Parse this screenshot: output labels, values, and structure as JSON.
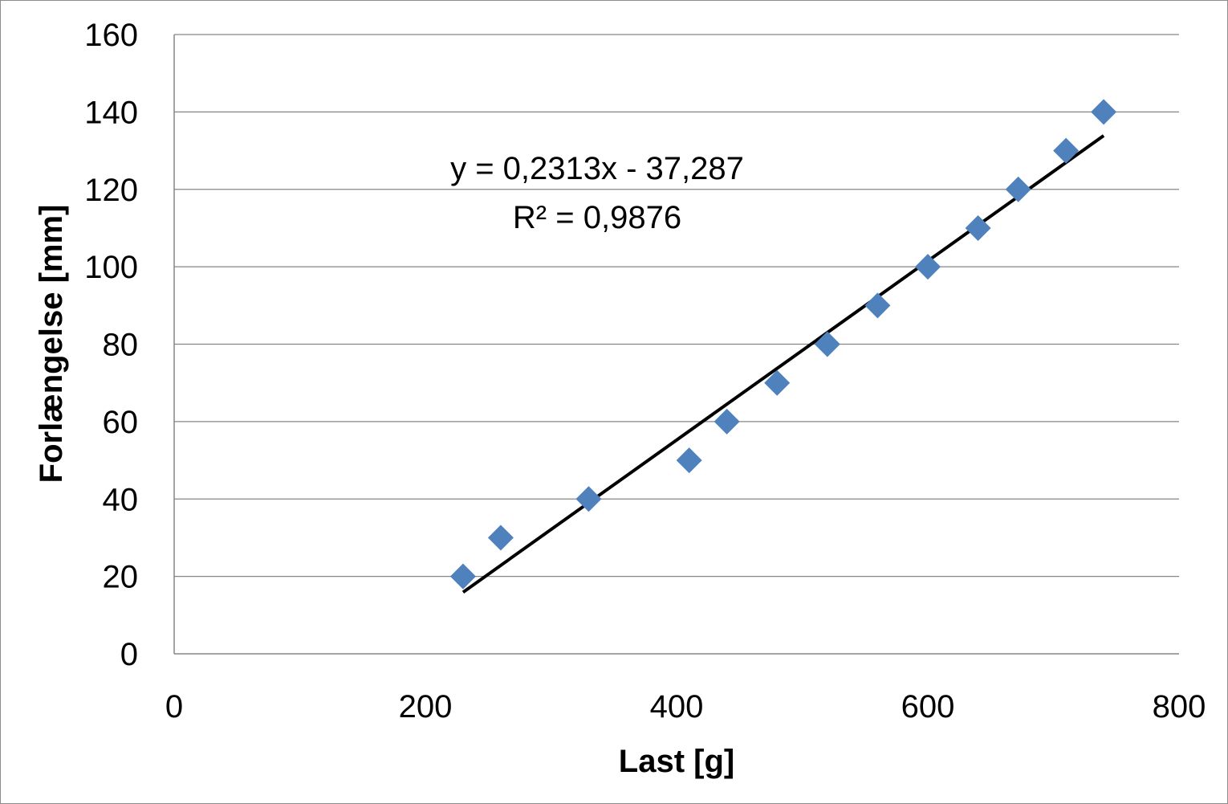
{
  "chart_data": {
    "type": "scatter",
    "title": "",
    "xlabel": "Last [g]",
    "ylabel": "Forlængelse [mm]",
    "xlim": [
      0,
      800
    ],
    "ylim": [
      0,
      160
    ],
    "x_ticks": [
      0,
      200,
      400,
      600,
      800
    ],
    "y_ticks": [
      0,
      20,
      40,
      60,
      80,
      100,
      120,
      140,
      160
    ],
    "x_tick_labels": [
      "0",
      "200",
      "400",
      "600",
      "800"
    ],
    "y_tick_labels": [
      "0",
      "20",
      "40",
      "60",
      "80",
      "100",
      "120",
      "140",
      "160"
    ],
    "grid": "horizontal major gridlines",
    "legend": "none",
    "marker": "diamond",
    "series": [
      {
        "x": [
          230,
          260,
          330,
          410,
          440,
          480,
          520,
          560,
          600,
          640,
          672,
          710,
          740
        ],
        "y": [
          20,
          30,
          40,
          50,
          60,
          70,
          80,
          90,
          100,
          110,
          120,
          130,
          140
        ],
        "color": "#4f81bd"
      }
    ],
    "trendline": {
      "type": "linear",
      "slope": 0.2313,
      "intercept": -37.287,
      "x_range": [
        230,
        740
      ],
      "color": "#000000",
      "equation_label": "y = 0,2313x - 37,287",
      "r2_label": "R² = 0,9876"
    }
  }
}
